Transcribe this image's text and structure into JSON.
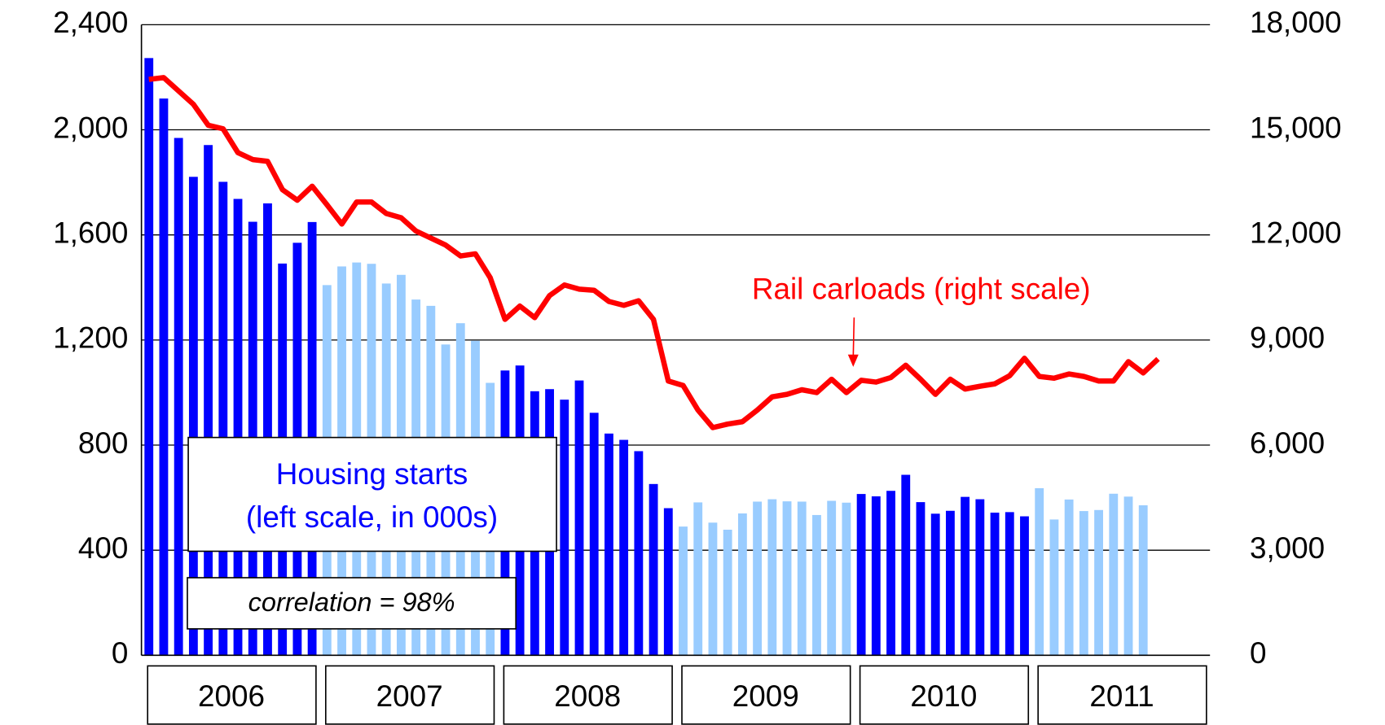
{
  "chart_data": {
    "type": "bar+line",
    "categories": [
      null,
      null,
      null,
      null,
      null,
      null,
      null,
      null,
      null,
      null,
      null,
      null,
      null,
      null,
      null,
      null,
      null,
      null,
      null,
      null,
      null,
      null,
      null,
      null,
      null,
      null,
      null,
      null,
      null,
      null,
      null,
      null,
      null,
      null,
      null,
      null,
      null,
      null,
      null,
      null,
      null,
      null,
      null,
      null,
      null,
      null,
      null,
      null,
      null,
      null,
      null,
      null,
      null,
      null,
      null,
      null,
      null,
      null,
      null,
      null,
      null,
      null,
      null,
      null,
      null,
      null,
      null,
      null,
      null
    ],
    "year_groups": [
      "2006",
      "2007",
      "2008",
      "2009",
      "2010",
      "2011"
    ],
    "series": [
      {
        "type": "bar",
        "group_colors": [
          "#0000ff",
          "#99ccff",
          "#0000ff",
          "#99ccff",
          "#0000ff",
          "#99ccff"
        ],
        "values": [
          2273,
          2119,
          1969,
          1821,
          1942,
          1802,
          1737,
          1650,
          1720,
          1491,
          1570,
          1649,
          1409,
          1480,
          1495,
          1490,
          1415,
          1448,
          1354,
          1330,
          1183,
          1264,
          1197,
          1037,
          1084,
          1103,
          1005,
          1013,
          973,
          1046,
          923,
          844,
          820,
          777,
          652,
          560,
          490,
          582,
          505,
          478,
          540,
          585,
          594,
          586,
          585,
          534,
          588,
          581,
          614,
          605,
          626,
          687,
          583,
          539,
          550,
          603,
          594,
          543,
          545,
          529,
          636,
          517,
          593,
          549,
          553,
          615,
          604,
          571,
          null
        ]
      },
      {
        "type": "line",
        "axis": "y2",
        "color": "#ff0000",
        "values": [
          16440,
          16490,
          16110,
          15730,
          15130,
          15030,
          14350,
          14150,
          14100,
          13290,
          12990,
          13390,
          12860,
          12310,
          12940,
          12940,
          12610,
          12490,
          12110,
          11910,
          11710,
          11400,
          11460,
          10780,
          9590,
          9970,
          9640,
          10270,
          10570,
          10450,
          10420,
          10100,
          9990,
          10120,
          9590,
          7830,
          7700,
          7000,
          6500,
          6600,
          6670,
          7000,
          7380,
          7450,
          7580,
          7500,
          7880,
          7500,
          7850,
          7800,
          7930,
          8280,
          7880,
          7450,
          7880,
          7600,
          7680,
          7750,
          7980,
          8480,
          7960,
          7910,
          8030,
          7960,
          7830,
          7830,
          8380,
          8060,
          8460
        ]
      }
    ],
    "ylim": [
      0,
      2400
    ],
    "yticks": [
      0,
      400,
      800,
      {
        "value": 1200,
        "label": "1,200"
      },
      {
        "value": 1600,
        "label": "1,600"
      },
      {
        "value": 2000,
        "label": "2,000"
      },
      {
        "value": 2400,
        "label": "2,400"
      }
    ],
    "y2lim": [
      0,
      18000
    ],
    "y2ticks": [
      0,
      {
        "value": 3000,
        "label": "3,000"
      },
      {
        "value": 6000,
        "label": "6,000"
      },
      {
        "value": 9000,
        "label": "9,000"
      },
      {
        "value": 12000,
        "label": "12,000"
      },
      {
        "value": 15000,
        "label": "15,000"
      },
      {
        "value": 18000,
        "label": "18,000"
      }
    ],
    "grid": true,
    "annotations": {
      "rail": "Rail carloads (right scale)",
      "housing": [
        "Housing starts",
        "(left scale, in 000s)"
      ],
      "correlation": "correlation = 98%"
    }
  }
}
